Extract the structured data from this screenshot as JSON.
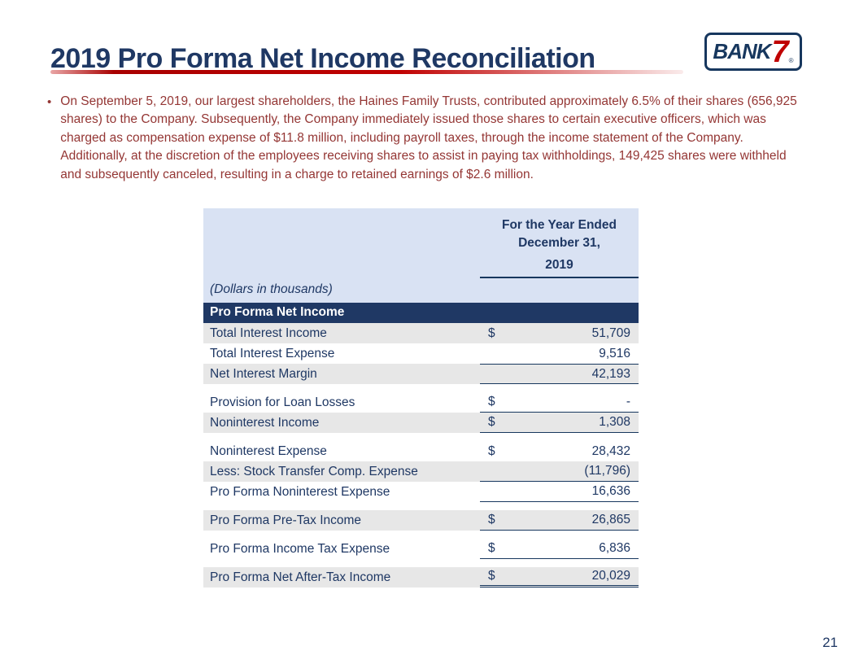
{
  "title": "2019 Pro Forma Net Income Reconciliation",
  "page_number": "21",
  "logo": {
    "bank": "BANK",
    "seven": "7",
    "reg": "®"
  },
  "bullet_marker": "•",
  "bullet": "On September 5, 2019, our largest shareholders, the Haines Family Trusts, contributed approximately 6.5% of their shares (656,925 shares) to the Company.  Subsequently, the Company immediately issued those shares to certain executive officers, which was charged as compensation expense of $11.8 million, including payroll taxes, through the income statement of the Company. Additionally, at the discretion of the employees receiving shares to assist in paying tax withholdings, 149,425 shares were withheld and subsequently canceled, resulting in a charge to retained earnings of $2.6 million.",
  "table": {
    "header_line1": "For the Year Ended",
    "header_line2": "December 31,",
    "header_year": "2019",
    "units_note": "(Dollars in thousands)",
    "section_header": "Pro Forma Net Income",
    "rows": [
      {
        "label": "Total Interest Income",
        "dollar": "$",
        "value": "51,709",
        "shaded": true,
        "underline": "none"
      },
      {
        "label": "Total Interest Expense",
        "dollar": "",
        "value": "9,516",
        "shaded": false,
        "underline": "none"
      },
      {
        "label": "Net Interest Margin",
        "dollar": "",
        "value": "42,193",
        "shaded": true,
        "underline": "top-bottom"
      },
      {
        "type": "spacer"
      },
      {
        "label": "Provision for Loan Losses",
        "dollar": "$",
        "value": "-",
        "shaded": false,
        "underline": "bottom"
      },
      {
        "label": "Noninterest Income",
        "dollar": "$",
        "value": "1,308",
        "shaded": true,
        "underline": "bottom"
      },
      {
        "type": "spacer"
      },
      {
        "label": "Noninterest Expense",
        "dollar": "$",
        "value": "28,432",
        "shaded": false,
        "underline": "none"
      },
      {
        "label": "Less: Stock Transfer Comp. Expense",
        "dollar": "",
        "value": "(11,796)",
        "shaded": true,
        "underline": "bottom"
      },
      {
        "label": "Pro Forma Noninterest Expense",
        "dollar": "",
        "value": "16,636",
        "shaded": false,
        "underline": "bottom"
      },
      {
        "type": "spacer"
      },
      {
        "label": "Pro Forma Pre-Tax Income",
        "dollar": "$",
        "value": "26,865",
        "shaded": true,
        "underline": "bottom"
      },
      {
        "type": "spacer"
      },
      {
        "label": "Pro Forma Income Tax Expense",
        "dollar": "$",
        "value": "6,836",
        "shaded": false,
        "underline": "bottom"
      },
      {
        "type": "spacer"
      },
      {
        "label": "Pro Forma Net After-Tax Income",
        "dollar": "$",
        "value": "20,029",
        "shaded": true,
        "underline": "double"
      }
    ]
  },
  "colors": {
    "navy": "#1F3864",
    "maroon": "#943634",
    "red": "#C00000",
    "header_bg": "#D9E2F3",
    "shade_bg": "#E7E7E7"
  }
}
